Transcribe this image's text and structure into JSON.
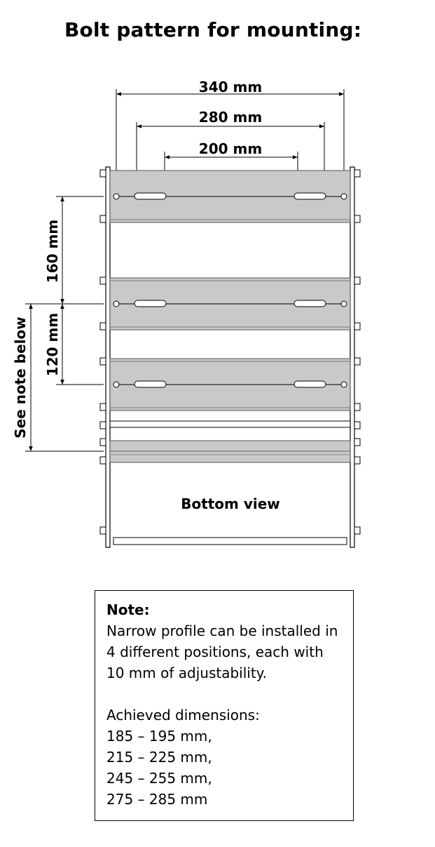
{
  "title": "Bolt pattern for mounting:",
  "dimensions": {
    "width_340": "340 mm",
    "width_280": "280 mm",
    "width_200": "200 mm",
    "height_160": "160 mm",
    "height_120": "120 mm",
    "see_note": "See note below"
  },
  "view_label": "Bottom view",
  "note": {
    "title": "Note:",
    "lines": [
      "Narrow profile can be installed in",
      "4 different positions, each with",
      "10 mm of adjustability."
    ],
    "dims_heading": "Achieved dimensions:",
    "dims": [
      "185 – 195 mm,",
      "215 – 225 mm,",
      "245 – 255 mm,",
      "275 – 285 mm"
    ]
  }
}
